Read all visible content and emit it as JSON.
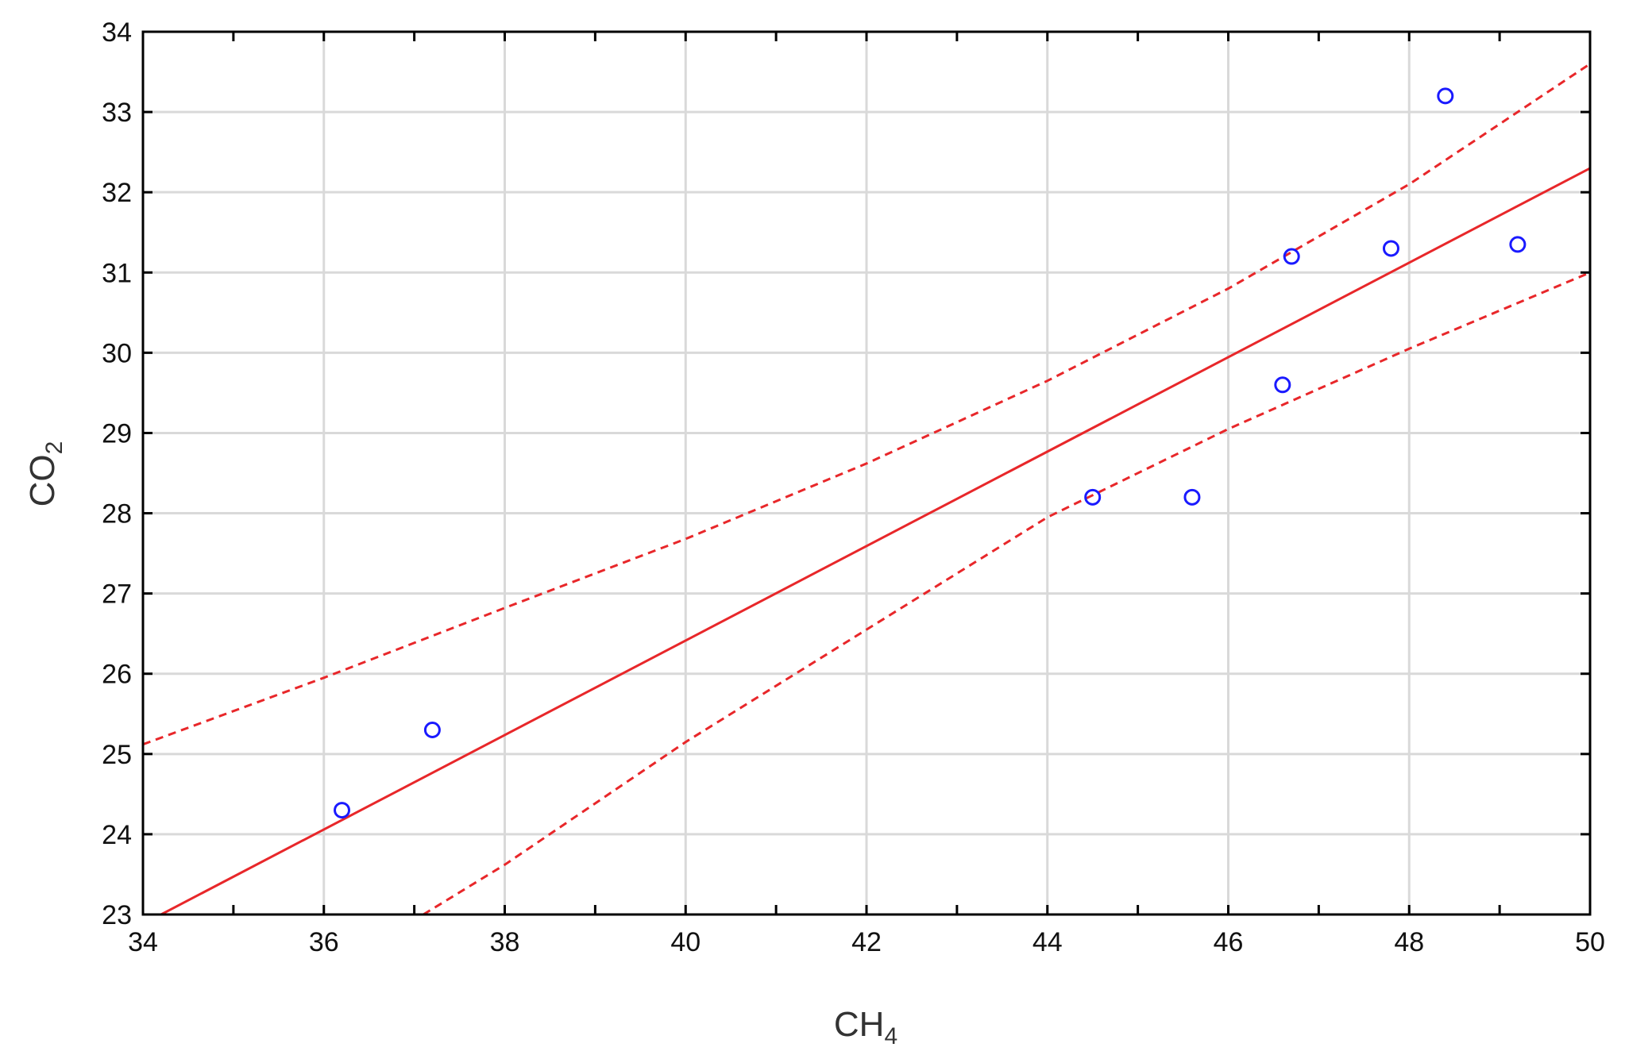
{
  "chart_data": {
    "type": "scatter",
    "xlabel": "CH",
    "xlabel_sub": "4",
    "ylabel": "CO",
    "ylabel_sub": "2",
    "xlim": [
      34,
      50
    ],
    "ylim": [
      23,
      34
    ],
    "x_ticks": [
      34,
      36,
      38,
      40,
      42,
      44,
      46,
      48,
      50
    ],
    "y_ticks": [
      23,
      24,
      25,
      26,
      27,
      28,
      29,
      30,
      31,
      32,
      33,
      34
    ],
    "grid": true,
    "points": [
      {
        "x": 36.2,
        "y": 24.3
      },
      {
        "x": 37.2,
        "y": 25.3
      },
      {
        "x": 44.5,
        "y": 28.2
      },
      {
        "x": 45.6,
        "y": 28.2
      },
      {
        "x": 46.6,
        "y": 29.6
      },
      {
        "x": 46.7,
        "y": 31.2
      },
      {
        "x": 47.8,
        "y": 31.3
      },
      {
        "x": 48.4,
        "y": 33.2
      },
      {
        "x": 49.2,
        "y": 31.35
      }
    ],
    "fit_line": [
      {
        "x": 34.2,
        "y": 23.0
      },
      {
        "x": 50.0,
        "y": 32.3
      }
    ],
    "upper_band": [
      {
        "x": 34.0,
        "y": 25.12
      },
      {
        "x": 36.0,
        "y": 25.95
      },
      {
        "x": 38.0,
        "y": 26.82
      },
      {
        "x": 40.0,
        "y": 27.68
      },
      {
        "x": 42.0,
        "y": 28.62
      },
      {
        "x": 44.0,
        "y": 29.65
      },
      {
        "x": 46.0,
        "y": 30.8
      },
      {
        "x": 48.0,
        "y": 32.1
      },
      {
        "x": 50.0,
        "y": 33.6
      }
    ],
    "lower_band": [
      {
        "x": 37.1,
        "y": 23.0
      },
      {
        "x": 38.0,
        "y": 23.62
      },
      {
        "x": 40.0,
        "y": 25.15
      },
      {
        "x": 42.0,
        "y": 26.55
      },
      {
        "x": 44.0,
        "y": 27.95
      },
      {
        "x": 46.0,
        "y": 29.05
      },
      {
        "x": 48.0,
        "y": 30.05
      },
      {
        "x": 50.0,
        "y": 31.0
      }
    ],
    "colors": {
      "points": "#1a1aff",
      "fit": "#e8272a",
      "grid": "#d9d9d9",
      "axis": "#000000"
    }
  }
}
